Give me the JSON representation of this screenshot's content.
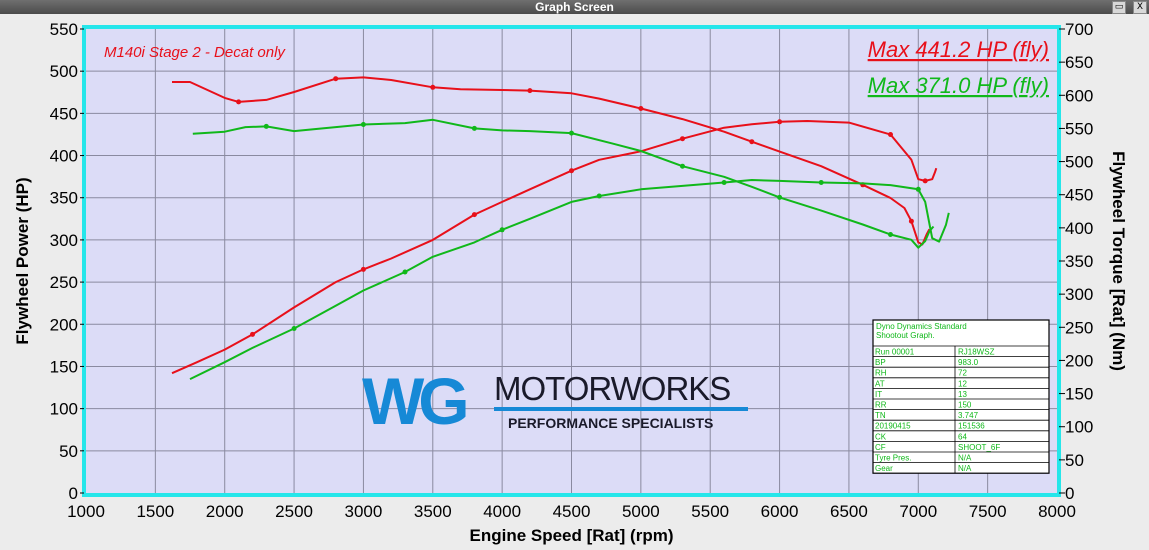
{
  "window": {
    "title": "Graph Screen",
    "maximize_glyph": "▭",
    "close_glyph": "X"
  },
  "chart_data": {
    "type": "line",
    "annotation": "M140i Stage 2 - Decat only",
    "xlabel": "Engine Speed [Rat] (rpm)",
    "ylabel_left": "Flywheel Power (HP)",
    "ylabel_right": "Flywheel Torque [Rat] (Nm)",
    "xlim": [
      1000,
      8000
    ],
    "ylim_left": [
      0,
      550
    ],
    "ylim_right": [
      0,
      700
    ],
    "x_ticks": [
      1000,
      1500,
      2000,
      2500,
      3000,
      3500,
      4000,
      4500,
      5000,
      5500,
      6000,
      6500,
      7000,
      7500,
      8000
    ],
    "y_ticks_left": [
      0,
      50,
      100,
      150,
      200,
      250,
      300,
      350,
      400,
      450,
      500,
      550
    ],
    "y_ticks_right": [
      0,
      50,
      100,
      150,
      200,
      250,
      300,
      350,
      400,
      450,
      500,
      550,
      600,
      650,
      700
    ],
    "grid": true,
    "colors": {
      "red": "#e8101a",
      "green": "#10b81a",
      "plot_bg": "#dcdcf7",
      "frame": "#25e6ea"
    },
    "max_labels": [
      {
        "text": "Max 441.2 HP (fly)",
        "color": "#e8101a"
      },
      {
        "text": "Max 371.0 HP (fly)",
        "color": "#10b81a"
      }
    ],
    "series": [
      {
        "color": "#e8101a",
        "axis": "left",
        "x": [
          1620,
          1800,
          2000,
          2200,
          2500,
          2800,
          3000,
          3200,
          3500,
          3800,
          4000,
          4200,
          4500,
          4700,
          5000,
          5300,
          5600,
          5800,
          6000,
          6200,
          6500,
          6800,
          6950,
          7000,
          7050,
          7100,
          7120,
          7130
        ],
        "y": [
          142,
          155,
          170,
          188,
          220,
          250,
          265,
          278,
          300,
          330,
          345,
          360,
          382,
          395,
          405,
          420,
          433,
          437,
          440,
          441,
          439,
          425,
          395,
          372,
          370,
          372,
          380,
          385
        ]
      },
      {
        "color": "#e8101a",
        "axis": "right",
        "x": [
          1620,
          1750,
          2000,
          2100,
          2300,
          2500,
          2800,
          3000,
          3200,
          3500,
          3700,
          4000,
          4200,
          4500,
          4700,
          5000,
          5300,
          5600,
          5800,
          6000,
          6300,
          6600,
          6800,
          6900,
          6950,
          7000,
          7030,
          7060,
          7080
        ],
        "y": [
          620,
          620,
          596,
          590,
          593,
          605,
          625,
          627,
          623,
          612,
          609,
          608,
          607,
          603,
          595,
          580,
          564,
          545,
          530,
          515,
          493,
          465,
          445,
          430,
          410,
          378,
          375,
          390,
          398
        ]
      },
      {
        "color": "#10b81a",
        "axis": "left",
        "x": [
          1750,
          2000,
          2200,
          2500,
          2800,
          3000,
          3300,
          3500,
          3800,
          4000,
          4200,
          4500,
          4700,
          5000,
          5300,
          5600,
          5800,
          6000,
          6300,
          6600,
          6800,
          7000,
          7050,
          7100,
          7150,
          7200,
          7220
        ],
        "y": [
          135,
          155,
          172,
          195,
          222,
          240,
          262,
          280,
          297,
          312,
          325,
          345,
          352,
          360,
          364,
          368,
          371,
          370,
          368,
          367,
          365,
          360,
          345,
          302,
          298,
          318,
          332
        ]
      },
      {
        "color": "#10b81a",
        "axis": "right",
        "x": [
          1770,
          2000,
          2150,
          2300,
          2500,
          2800,
          3000,
          3300,
          3500,
          3800,
          4000,
          4200,
          4500,
          4800,
          5000,
          5300,
          5600,
          5800,
          6000,
          6300,
          6600,
          6800,
          6950,
          7000,
          7050,
          7080,
          7110
        ],
        "y": [
          542,
          545,
          552,
          553,
          546,
          552,
          556,
          558,
          563,
          550,
          547,
          546,
          543,
          527,
          516,
          493,
          477,
          462,
          446,
          426,
          405,
          390,
          382,
          370,
          380,
          395,
          402
        ]
      }
    ],
    "info_table": {
      "header": [
        "Dyno Dynamics Standard",
        "Shootout Graph."
      ],
      "rows": [
        [
          "Run 00001",
          "RJ18WSZ"
        ],
        [
          "BP",
          "983.0"
        ],
        [
          "RH",
          "72"
        ],
        [
          "AT",
          "12"
        ],
        [
          "IT",
          "13"
        ],
        [
          "RR",
          "150"
        ],
        [
          "TN",
          "3.747"
        ],
        [
          "20190415",
          "151536"
        ],
        [
          "CK",
          "64"
        ],
        [
          "CF",
          "SHOOT_6F"
        ],
        [
          "Tyre Pres.",
          "N/A"
        ],
        [
          "Gear",
          "N/A"
        ]
      ]
    },
    "logo": {
      "mark": "WG",
      "name": "MOTORWORKS",
      "tagline": "PERFORMANCE SPECIALISTS"
    }
  }
}
